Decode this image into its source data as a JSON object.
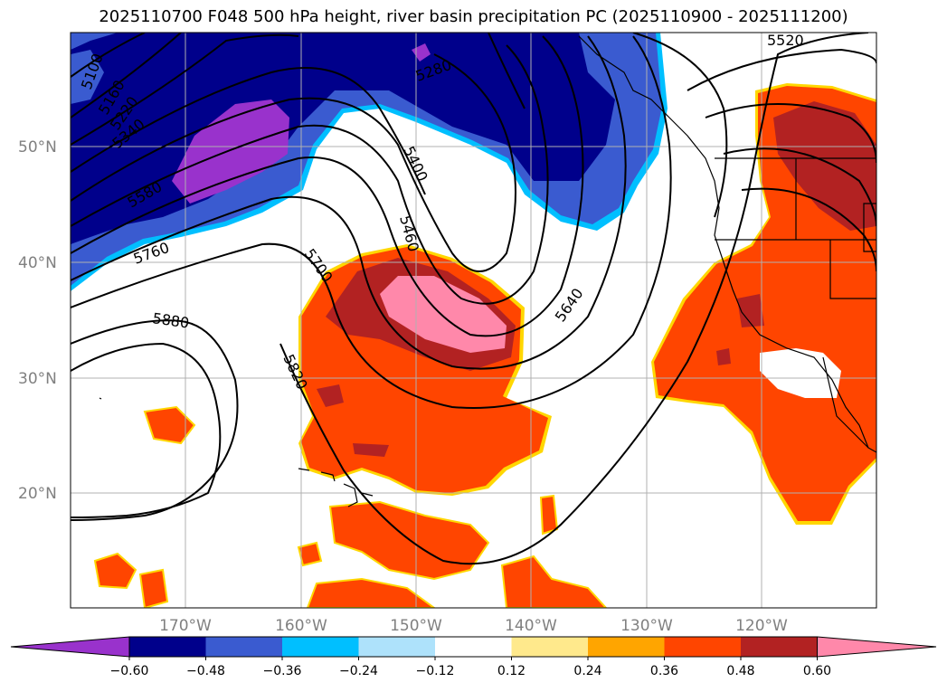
{
  "title": "2025110700 F048 500 hPa height, river basin precipitation PC (2025110900 - 2025111200)",
  "map": {
    "lat_labels": [
      "50°N",
      "40°N",
      "30°N",
      "20°N"
    ],
    "lon_labels": [
      "170°W",
      "160°W",
      "150°W",
      "140°W",
      "130°W",
      "120°W"
    ],
    "contour_labels": [
      "5100",
      "5160",
      "5220",
      "5280",
      "5340",
      "5580",
      "5760",
      "5880",
      "5400",
      "5460",
      "5700",
      "5820",
      "5640",
      "5280",
      "5520"
    ]
  },
  "colorbar": {
    "ticks": [
      "−0.60",
      "−0.48",
      "−0.36",
      "−0.24",
      "−0.12",
      "0.12",
      "0.24",
      "0.36",
      "0.48",
      "0.60"
    ],
    "colors": [
      "#9932cc",
      "#00008b",
      "#3a5bd0",
      "#00bfff",
      "#aee2fb",
      "#ffffff",
      "#ffe98c",
      "#ffa500",
      "#ff4500",
      "#b22222",
      "#ff88aa"
    ]
  },
  "palette": {
    "neg_strong": "#9932cc",
    "neg_darkblue": "#00008b",
    "neg_blue": "#3a5bd0",
    "neg_cyan": "#00bfff",
    "pos_orange": "#ff4500",
    "pos_red": "#b22222",
    "pos_pink": "#ff88aa",
    "pos_yellow": "#ffd700"
  }
}
